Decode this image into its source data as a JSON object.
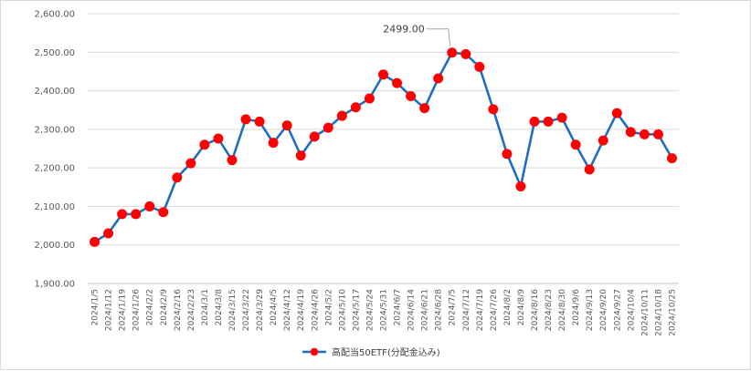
{
  "chart_data": {
    "type": "line",
    "title": "",
    "xlabel": "",
    "ylabel": "",
    "ylim": [
      1900,
      2600
    ],
    "yticks": [
      1900,
      2000,
      2100,
      2200,
      2300,
      2400,
      2500,
      2600
    ],
    "ytick_labels": [
      "1,900.00",
      "2,000.00",
      "2,100.00",
      "2,200.00",
      "2,300.00",
      "2,400.00",
      "2,500.00",
      "2,600.00"
    ],
    "grid": true,
    "legend": "bottom",
    "line_color": "#1f6fc0",
    "marker_color": "#ff0000",
    "categories": [
      "2024/1/5",
      "2024/1/12",
      "2024/1/19",
      "2024/1/26",
      "2024/2/2",
      "2024/2/9",
      "2024/2/16",
      "2024/2/23",
      "2024/3/1",
      "2024/3/8",
      "2024/3/15",
      "2024/3/22",
      "2024/3/29",
      "2024/4/5",
      "2024/4/12",
      "2024/4/19",
      "2024/4/26",
      "2024/5/2",
      "2024/5/10",
      "2024/5/17",
      "2024/5/24",
      "2024/5/31",
      "2024/6/7",
      "2024/6/14",
      "2024/6/21",
      "2024/6/28",
      "2024/7/5",
      "2024/7/12",
      "2024/7/19",
      "2024/7/26",
      "2024/8/2",
      "2024/8/9",
      "2024/8/16",
      "2024/8/23",
      "2024/8/30",
      "2024/9/6",
      "2024/9/13",
      "2024/9/20",
      "2024/9/27",
      "2024/10/4",
      "2024/10/11",
      "2024/10/18",
      "2024/10/25"
    ],
    "series": [
      {
        "name": "高配当50ETF(分配金込み)",
        "values": [
          2008,
          2030,
          2080,
          2080,
          2100,
          2085,
          2175,
          2212,
          2260,
          2276,
          2220,
          2326,
          2320,
          2265,
          2310,
          2232,
          2281,
          2304,
          2335,
          2357,
          2380,
          2442,
          2420,
          2386,
          2355,
          2432,
          2499,
          2495,
          2462,
          2352,
          2236,
          2152,
          2320,
          2320,
          2330,
          2260,
          2196,
          2271,
          2342,
          2293,
          2287,
          2287,
          2225
        ]
      }
    ],
    "annotations": [
      {
        "category": "2024/7/5",
        "value": 2499,
        "text": "2499.00"
      }
    ]
  }
}
